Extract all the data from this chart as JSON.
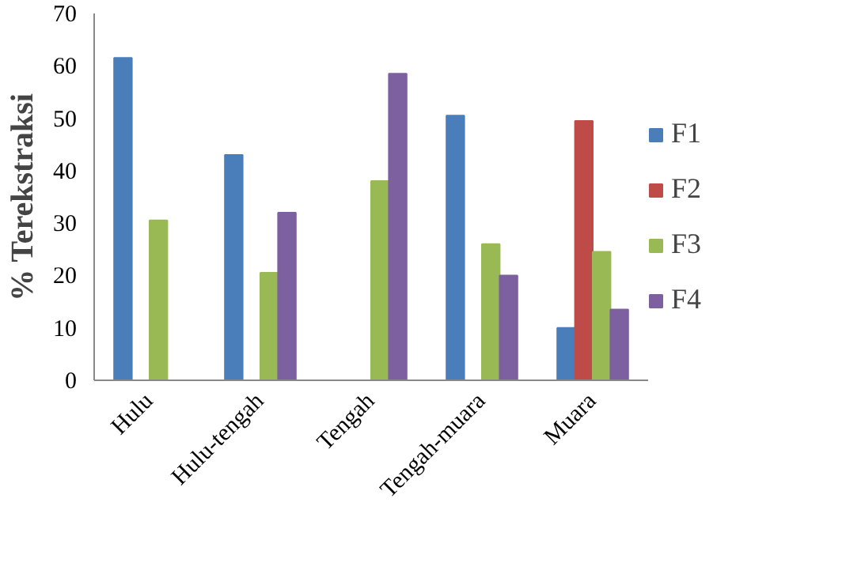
{
  "chart_data": {
    "type": "bar",
    "ylabel": "% Terekstraksi",
    "categories": [
      "Hulu",
      "Hulu-tengah",
      "Tengah",
      "Tengah-muara",
      "Muara"
    ],
    "series": [
      {
        "name": "F1",
        "color": "#4a7ebb",
        "values": [
          61.5,
          43,
          null,
          50.5,
          10
        ]
      },
      {
        "name": "F2",
        "color": "#be4b48",
        "values": [
          null,
          null,
          null,
          null,
          49.5
        ]
      },
      {
        "name": "F3",
        "color": "#98b954",
        "values": [
          30.5,
          20.5,
          38,
          26,
          24.5
        ]
      },
      {
        "name": "F4",
        "color": "#7d60a0",
        "values": [
          null,
          32,
          58.5,
          20,
          13.5
        ]
      }
    ],
    "ylim": [
      0,
      70
    ],
    "yticks": [
      0,
      10,
      20,
      30,
      40,
      50,
      60,
      70
    ],
    "grid": false,
    "legend": "right"
  }
}
